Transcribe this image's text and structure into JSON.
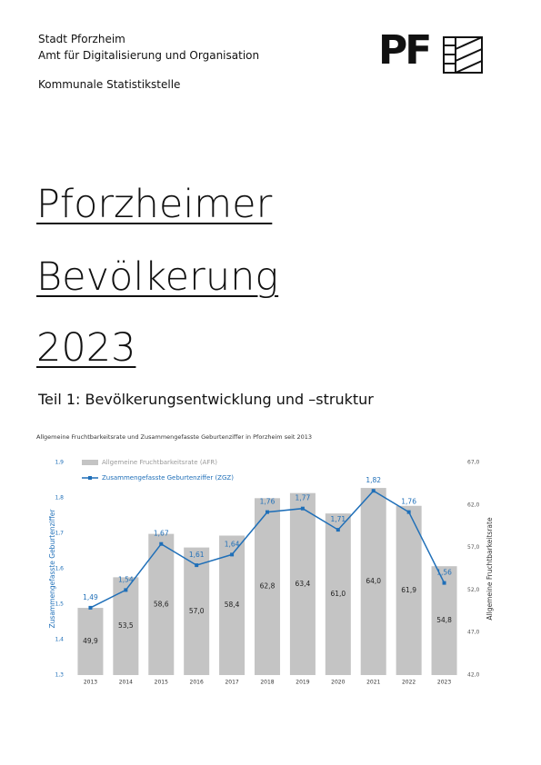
{
  "header": {
    "lines": [
      "Stadt Pforzheim",
      "Amt für Digitalisierung und Organisation",
      "Kommunale Statistikstelle"
    ]
  },
  "logo": "PF",
  "title": [
    "Pforzheimer",
    "Bevölkerung",
    "2023"
  ],
  "subtitle": "Teil 1: Bevölkerungsentwicklung und –struktur",
  "chart_data": {
    "type": "combo",
    "title": "Allgemeine Fruchtbarkeitsrate und Zusammengefasste Geburtenziffer in Pforzheim seit 2013",
    "categories": [
      "2013",
      "2014",
      "2015",
      "2016",
      "2017",
      "2018",
      "2019",
      "2020",
      "2021",
      "2022",
      "2023"
    ],
    "ylabel": "Zusammengefasste Geburtenziffer",
    "y2label": "Allgemeine Fruchtbarkeitsrate",
    "ylim": [
      1.3,
      1.9
    ],
    "yticks": [
      {
        "value": 1.3,
        "label": "1,3"
      },
      {
        "value": 1.4,
        "label": "1,4"
      },
      {
        "value": 1.5,
        "label": "1,5"
      },
      {
        "value": 1.6,
        "label": "1,6"
      },
      {
        "value": 1.7,
        "label": "1,7"
      },
      {
        "value": 1.8,
        "label": "1,8"
      },
      {
        "value": 1.9,
        "label": "1,9"
      }
    ],
    "y2lim": [
      42,
      67
    ],
    "y2ticks": [
      {
        "value": 42,
        "label": "42,0"
      },
      {
        "value": 47,
        "label": "47,0"
      },
      {
        "value": 52,
        "label": "52,0"
      },
      {
        "value": 57,
        "label": "57,0"
      },
      {
        "value": 62,
        "label": "62,0"
      },
      {
        "value": 67,
        "label": "67,0"
      }
    ],
    "series": [
      {
        "name": "Allgemeine Fruchtbarkeitsrate (AFR)",
        "type": "bar",
        "axis": "y2",
        "color": "#c4c4c4",
        "values": [
          49.9,
          53.5,
          58.6,
          57.0,
          58.4,
          62.8,
          63.4,
          61.0,
          64.0,
          61.9,
          54.8
        ],
        "value_labels": [
          "49,9",
          "53,5",
          "58,6",
          "57,0",
          "58,4",
          "62,8",
          "63,4",
          "61,0",
          "64,0",
          "61,9",
          "54,8"
        ]
      },
      {
        "name": "Zusammengefasste Geburtenziffer (ZGZ)",
        "type": "line",
        "color": "#1f6fb8",
        "values": [
          1.49,
          1.54,
          1.67,
          1.61,
          1.64,
          1.76,
          1.77,
          1.71,
          1.82,
          1.76,
          1.56
        ],
        "value_labels": [
          "1,49",
          "1,54",
          "1,67",
          "1,61",
          "1,64",
          "1,76",
          "1,77",
          "1,71",
          "1,82",
          "1,76",
          "1,56"
        ]
      }
    ]
  }
}
